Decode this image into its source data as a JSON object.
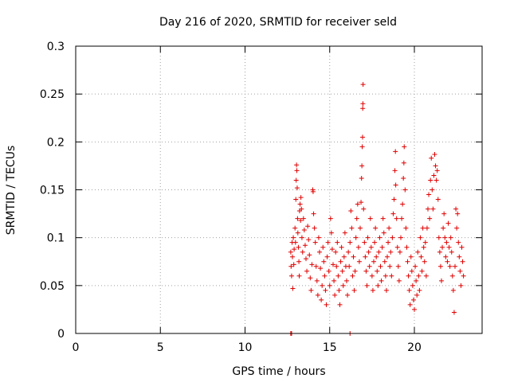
{
  "colors": {
    "points": "#e00000",
    "grid": "#a0a0a0",
    "axes": "#000000"
  },
  "chart_data": {
    "type": "scatter",
    "title": "Day 216 of 2020, SRMTID for receiver seld",
    "xlabel": "GPS time / hours",
    "ylabel": "SRMTID / TECUs",
    "xlim": [
      0,
      24
    ],
    "ylim": [
      0,
      0.3
    ],
    "xticks": [
      0,
      5,
      10,
      15,
      20
    ],
    "yticks": [
      0,
      0.05,
      0.1,
      0.15,
      0.2,
      0.25,
      0.3
    ],
    "xtick_labels": [
      "0",
      "5",
      "10",
      "15",
      "20"
    ],
    "ytick_labels": [
      "0",
      "0.05",
      "0.1",
      "0.15",
      "0.2",
      "0.25",
      "0.3"
    ],
    "grid": true,
    "marker": "+",
    "series": [
      {
        "name": "SRMTID",
        "points": [
          [
            12.7,
            0.0
          ],
          [
            12.75,
            0.0
          ],
          [
            16.2,
            0.0
          ],
          [
            12.7,
            0.085
          ],
          [
            12.72,
            0.07
          ],
          [
            12.75,
            0.06
          ],
          [
            12.78,
            0.095
          ],
          [
            12.8,
            0.08
          ],
          [
            12.82,
            0.047
          ],
          [
            12.85,
            0.1
          ],
          [
            12.88,
            0.072
          ],
          [
            12.9,
            0.088
          ],
          [
            12.95,
            0.11
          ],
          [
            12.98,
            0.095
          ],
          [
            13.0,
            0.14
          ],
          [
            13.02,
            0.16
          ],
          [
            13.04,
            0.176
          ],
          [
            13.06,
            0.17
          ],
          [
            13.08,
            0.152
          ],
          [
            13.1,
            0.12
          ],
          [
            13.12,
            0.105
          ],
          [
            13.15,
            0.09
          ],
          [
            13.18,
            0.075
          ],
          [
            13.2,
            0.06
          ],
          [
            13.22,
            0.128
          ],
          [
            13.25,
            0.135
          ],
          [
            13.28,
            0.118
          ],
          [
            13.3,
            0.142
          ],
          [
            13.33,
            0.13
          ],
          [
            13.36,
            0.1
          ],
          [
            13.4,
            0.085
          ],
          [
            13.45,
            0.12
          ],
          [
            13.5,
            0.108
          ],
          [
            13.55,
            0.092
          ],
          [
            13.6,
            0.078
          ],
          [
            13.65,
            0.065
          ],
          [
            13.7,
            0.112
          ],
          [
            13.75,
            0.098
          ],
          [
            13.8,
            0.082
          ],
          [
            13.85,
            0.058
          ],
          [
            13.9,
            0.045
          ],
          [
            13.95,
            0.072
          ],
          [
            14.0,
            0.15
          ],
          [
            14.02,
            0.148
          ],
          [
            14.05,
            0.125
          ],
          [
            14.1,
            0.11
          ],
          [
            14.15,
            0.095
          ],
          [
            14.2,
            0.07
          ],
          [
            14.25,
            0.055
          ],
          [
            14.3,
            0.04
          ],
          [
            14.35,
            0.1
          ],
          [
            14.4,
            0.085
          ],
          [
            14.45,
            0.068
          ],
          [
            14.5,
            0.035
          ],
          [
            14.55,
            0.05
          ],
          [
            14.6,
            0.09
          ],
          [
            14.65,
            0.075
          ],
          [
            14.7,
            0.06
          ],
          [
            14.75,
            0.045
          ],
          [
            14.8,
            0.03
          ],
          [
            14.85,
            0.08
          ],
          [
            14.9,
            0.095
          ],
          [
            14.95,
            0.065
          ],
          [
            15.0,
            0.05
          ],
          [
            15.05,
            0.12
          ],
          [
            15.1,
            0.105
          ],
          [
            15.15,
            0.088
          ],
          [
            15.2,
            0.072
          ],
          [
            15.25,
            0.055
          ],
          [
            15.3,
            0.04
          ],
          [
            15.35,
            0.085
          ],
          [
            15.4,
            0.07
          ],
          [
            15.45,
            0.095
          ],
          [
            15.5,
            0.06
          ],
          [
            15.55,
            0.045
          ],
          [
            15.6,
            0.03
          ],
          [
            15.65,
            0.075
          ],
          [
            15.7,
            0.09
          ],
          [
            15.75,
            0.065
          ],
          [
            15.8,
            0.05
          ],
          [
            15.85,
            0.08
          ],
          [
            15.9,
            0.105
          ],
          [
            15.95,
            0.07
          ],
          [
            16.0,
            0.055
          ],
          [
            16.05,
            0.04
          ],
          [
            16.1,
            0.085
          ],
          [
            16.15,
            0.07
          ],
          [
            16.2,
            0.095
          ],
          [
            16.25,
            0.128
          ],
          [
            16.3,
            0.11
          ],
          [
            16.35,
            0.06
          ],
          [
            16.4,
            0.08
          ],
          [
            16.45,
            0.045
          ],
          [
            16.5,
            0.065
          ],
          [
            16.55,
            0.1
          ],
          [
            16.6,
            0.12
          ],
          [
            16.65,
            0.135
          ],
          [
            16.7,
            0.09
          ],
          [
            16.75,
            0.075
          ],
          [
            16.8,
            0.11
          ],
          [
            16.85,
            0.137
          ],
          [
            16.88,
            0.162
          ],
          [
            16.9,
            0.175
          ],
          [
            16.92,
            0.195
          ],
          [
            16.94,
            0.205
          ],
          [
            16.95,
            0.235
          ],
          [
            16.96,
            0.24
          ],
          [
            16.97,
            0.26
          ],
          [
            17.0,
            0.13
          ],
          [
            17.05,
            0.095
          ],
          [
            17.1,
            0.08
          ],
          [
            17.15,
            0.065
          ],
          [
            17.2,
            0.05
          ],
          [
            17.25,
            0.1
          ],
          [
            17.3,
            0.085
          ],
          [
            17.35,
            0.07
          ],
          [
            17.4,
            0.12
          ],
          [
            17.45,
            0.09
          ],
          [
            17.5,
            0.06
          ],
          [
            17.55,
            0.045
          ],
          [
            17.6,
            0.075
          ],
          [
            17.65,
            0.095
          ],
          [
            17.7,
            0.11
          ],
          [
            17.75,
            0.08
          ],
          [
            17.8,
            0.065
          ],
          [
            17.85,
            0.05
          ],
          [
            17.9,
            0.085
          ],
          [
            17.95,
            0.1
          ],
          [
            18.0,
            0.07
          ],
          [
            18.05,
            0.055
          ],
          [
            18.1,
            0.09
          ],
          [
            18.15,
            0.12
          ],
          [
            18.2,
            0.105
          ],
          [
            18.25,
            0.075
          ],
          [
            18.3,
            0.06
          ],
          [
            18.35,
            0.045
          ],
          [
            18.4,
            0.08
          ],
          [
            18.45,
            0.095
          ],
          [
            18.5,
            0.11
          ],
          [
            18.55,
            0.07
          ],
          [
            18.6,
            0.085
          ],
          [
            18.65,
            0.06
          ],
          [
            18.7,
            0.1
          ],
          [
            18.75,
            0.125
          ],
          [
            18.8,
            0.14
          ],
          [
            18.85,
            0.17
          ],
          [
            18.88,
            0.19
          ],
          [
            18.9,
            0.155
          ],
          [
            18.95,
            0.12
          ],
          [
            19.0,
            0.09
          ],
          [
            19.05,
            0.07
          ],
          [
            19.1,
            0.055
          ],
          [
            19.15,
            0.085
          ],
          [
            19.2,
            0.1
          ],
          [
            19.25,
            0.12
          ],
          [
            19.3,
            0.135
          ],
          [
            19.35,
            0.162
          ],
          [
            19.38,
            0.178
          ],
          [
            19.4,
            0.195
          ],
          [
            19.45,
            0.15
          ],
          [
            19.5,
            0.11
          ],
          [
            19.55,
            0.09
          ],
          [
            19.6,
            0.075
          ],
          [
            19.65,
            0.06
          ],
          [
            19.7,
            0.045
          ],
          [
            19.75,
            0.03
          ],
          [
            19.8,
            0.08
          ],
          [
            19.85,
            0.065
          ],
          [
            19.9,
            0.05
          ],
          [
            19.95,
            0.035
          ],
          [
            20.0,
            0.025
          ],
          [
            20.05,
            0.07
          ],
          [
            20.1,
            0.055
          ],
          [
            20.15,
            0.04
          ],
          [
            20.2,
            0.085
          ],
          [
            20.25,
            0.06
          ],
          [
            20.3,
            0.045
          ],
          [
            20.35,
            0.1
          ],
          [
            20.4,
            0.08
          ],
          [
            20.45,
            0.065
          ],
          [
            20.5,
            0.11
          ],
          [
            20.55,
            0.09
          ],
          [
            20.6,
            0.075
          ],
          [
            20.65,
            0.095
          ],
          [
            20.7,
            0.06
          ],
          [
            20.75,
            0.11
          ],
          [
            20.8,
            0.13
          ],
          [
            20.85,
            0.145
          ],
          [
            20.9,
            0.12
          ],
          [
            20.95,
            0.16
          ],
          [
            21.0,
            0.183
          ],
          [
            21.05,
            0.15
          ],
          [
            21.1,
            0.13
          ],
          [
            21.15,
            0.165
          ],
          [
            21.2,
            0.187
          ],
          [
            21.25,
            0.175
          ],
          [
            21.3,
            0.16
          ],
          [
            21.35,
            0.17
          ],
          [
            21.4,
            0.14
          ],
          [
            21.45,
            0.1
          ],
          [
            21.5,
            0.085
          ],
          [
            21.55,
            0.07
          ],
          [
            21.6,
            0.055
          ],
          [
            21.65,
            0.09
          ],
          [
            21.7,
            0.11
          ],
          [
            21.75,
            0.125
          ],
          [
            21.8,
            0.1
          ],
          [
            21.85,
            0.08
          ],
          [
            21.9,
            0.095
          ],
          [
            21.95,
            0.075
          ],
          [
            22.0,
            0.115
          ],
          [
            22.05,
            0.09
          ],
          [
            22.1,
            0.07
          ],
          [
            22.15,
            0.1
          ],
          [
            22.2,
            0.085
          ],
          [
            22.25,
            0.06
          ],
          [
            22.3,
            0.045
          ],
          [
            22.35,
            0.022
          ],
          [
            22.4,
            0.07
          ],
          [
            22.45,
            0.13
          ],
          [
            22.5,
            0.11
          ],
          [
            22.55,
            0.125
          ],
          [
            22.6,
            0.095
          ],
          [
            22.65,
            0.08
          ],
          [
            22.7,
            0.065
          ],
          [
            22.75,
            0.05
          ],
          [
            22.8,
            0.09
          ],
          [
            22.85,
            0.075
          ],
          [
            22.9,
            0.06
          ]
        ]
      }
    ]
  }
}
